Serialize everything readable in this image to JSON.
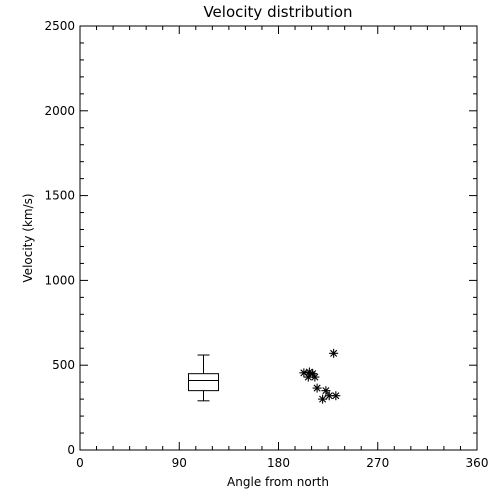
{
  "chart_data": {
    "type": "scatter",
    "title": "Velocity distribution",
    "xlabel": "Angle from north",
    "ylabel": "Velocity (km/s)",
    "xlim": [
      0,
      360
    ],
    "ylim": [
      0,
      2500
    ],
    "x_ticks": [
      "0",
      "90",
      "180",
      "270",
      "360"
    ],
    "y_ticks": [
      "0",
      "500",
      "1000",
      "1500",
      "2000",
      "2500"
    ],
    "grid": false,
    "box_plot": {
      "x": 112,
      "min": 290,
      "q1": 350,
      "median": 410,
      "q3": 450,
      "max": 560
    },
    "scatter_points": [
      {
        "x": 203,
        "y": 455
      },
      {
        "x": 207,
        "y": 430
      },
      {
        "x": 208,
        "y": 460
      },
      {
        "x": 211,
        "y": 450
      },
      {
        "x": 213,
        "y": 430
      },
      {
        "x": 215,
        "y": 365
      },
      {
        "x": 220,
        "y": 300
      },
      {
        "x": 223,
        "y": 350
      },
      {
        "x": 226,
        "y": 320
      },
      {
        "x": 230,
        "y": 570
      },
      {
        "x": 232,
        "y": 320
      }
    ]
  }
}
